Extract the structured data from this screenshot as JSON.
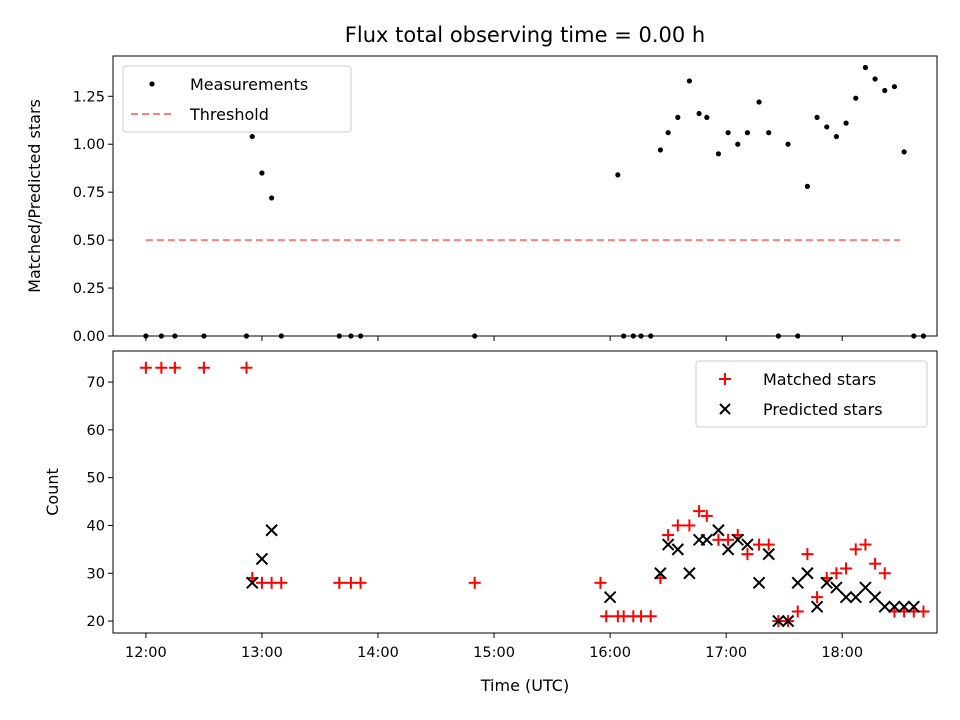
{
  "figure_title": "Flux total observing time = 0.00 h",
  "chart_data": [
    {
      "type": "scatter",
      "title": "Flux total observing time = 0.00 h",
      "xlabel": "",
      "ylabel": "Matched/Predicted stars",
      "xlim": [
        "11:43",
        "18:49"
      ],
      "ylim": [
        0,
        1.46
      ],
      "yticks": [
        "0.00",
        "0.25",
        "0.50",
        "0.75",
        "1.00",
        "1.25"
      ],
      "ytick_values": [
        0,
        0.25,
        0.5,
        0.75,
        1.0,
        1.25
      ],
      "xtick_values": [
        "12:00",
        "13:00",
        "14:00",
        "15:00",
        "16:00",
        "17:00",
        "18:00"
      ],
      "legend": "upper left",
      "series": [
        {
          "name": "Measurements",
          "color": "#000000",
          "marker": "dot",
          "x": [
            "12:00",
            "12:08",
            "12:15",
            "12:30",
            "12:52",
            "12:55",
            "13:00",
            "13:05",
            "13:10",
            "13:40",
            "13:46",
            "13:51",
            "14:50",
            "16:04",
            "16:07",
            "16:12",
            "16:16",
            "16:21",
            "16:26",
            "16:30",
            "16:35",
            "16:41",
            "16:46",
            "16:50",
            "16:56",
            "17:01",
            "17:06",
            "17:11",
            "17:17",
            "17:22",
            "17:27",
            "17:32",
            "17:37",
            "17:42",
            "17:47",
            "17:52",
            "17:57",
            "18:02",
            "18:07",
            "18:12",
            "18:17",
            "18:22",
            "18:27",
            "18:32",
            "18:37",
            "18:42"
          ],
          "y": [
            0,
            0,
            0,
            0,
            0,
            1.04,
            0.85,
            0.72,
            0,
            0,
            0,
            0,
            0,
            0.84,
            0,
            0,
            0,
            0,
            0.97,
            1.06,
            1.14,
            1.33,
            1.16,
            1.14,
            0.95,
            1.06,
            1.0,
            1.06,
            1.22,
            1.06,
            0,
            1.0,
            0,
            0.78,
            1.14,
            1.09,
            1.04,
            1.11,
            1.24,
            1.4,
            1.34,
            1.28,
            1.3,
            0.96,
            0,
            0
          ]
        },
        {
          "name": "Threshold",
          "color": "#ff7f7f",
          "style": "dashed",
          "x": [
            "12:00",
            "18:30"
          ],
          "y": [
            0.5,
            0.5
          ]
        }
      ]
    },
    {
      "type": "scatter",
      "title": "",
      "xlabel": "Time (UTC)",
      "ylabel": "Count",
      "xlim": [
        "11:43",
        "18:49"
      ],
      "ylim": [
        17.5,
        76.5
      ],
      "yticks": [
        "20",
        "30",
        "40",
        "50",
        "60",
        "70"
      ],
      "ytick_values": [
        20,
        30,
        40,
        50,
        60,
        70
      ],
      "xticks": [
        "12:00",
        "13:00",
        "14:00",
        "15:00",
        "16:00",
        "17:00",
        "18:00"
      ],
      "xtick_values": [
        "12:00",
        "13:00",
        "14:00",
        "15:00",
        "16:00",
        "17:00",
        "18:00"
      ],
      "legend": "upper right",
      "series": [
        {
          "name": "Matched stars",
          "color": "#ff0000",
          "marker": "plus",
          "x": [
            "12:00",
            "12:08",
            "12:15",
            "12:30",
            "12:52",
            "12:55",
            "13:00",
            "13:05",
            "13:10",
            "13:40",
            "13:46",
            "13:51",
            "14:50",
            "15:55",
            "15:58",
            "16:04",
            "16:07",
            "16:12",
            "16:16",
            "16:21",
            "16:26",
            "16:30",
            "16:35",
            "16:41",
            "16:46",
            "16:50",
            "16:56",
            "17:01",
            "17:06",
            "17:11",
            "17:17",
            "17:22",
            "17:27",
            "17:32",
            "17:37",
            "17:42",
            "17:47",
            "17:52",
            "17:57",
            "18:02",
            "18:07",
            "18:12",
            "18:17",
            "18:22",
            "18:27",
            "18:32",
            "18:37",
            "18:42"
          ],
          "y": [
            73,
            73,
            73,
            73,
            73,
            29,
            28,
            28,
            28,
            28,
            28,
            28,
            28,
            28,
            21,
            21,
            21,
            21,
            21,
            21,
            29,
            38,
            40,
            40,
            43,
            42,
            37,
            37,
            38,
            34,
            36,
            36,
            20,
            20,
            22,
            34,
            25,
            29,
            30,
            31,
            35,
            36,
            32,
            30,
            22,
            22,
            22,
            22
          ]
        },
        {
          "name": "Predicted stars",
          "color": "#000000",
          "marker": "x",
          "x": [
            "12:55",
            "13:00",
            "13:05",
            "16:00",
            "16:26",
            "16:30",
            "16:35",
            "16:41",
            "16:46",
            "16:50",
            "16:56",
            "17:01",
            "17:06",
            "17:11",
            "17:17",
            "17:22",
            "17:27",
            "17:32",
            "17:37",
            "17:42",
            "17:47",
            "17:52",
            "17:57",
            "18:02",
            "18:07",
            "18:12",
            "18:17",
            "18:22",
            "18:27",
            "18:32",
            "18:37"
          ],
          "y": [
            28,
            33,
            39,
            25,
            30,
            36,
            35,
            30,
            37,
            37,
            39,
            35,
            37,
            36,
            28,
            34,
            20,
            20,
            28,
            30,
            23,
            28,
            27,
            25,
            25,
            27,
            25,
            23,
            23,
            23,
            23
          ]
        }
      ]
    }
  ]
}
